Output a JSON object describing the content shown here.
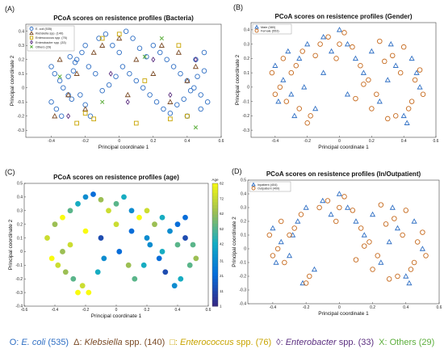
{
  "colors": {
    "ecoli": "#2f6fc4",
    "klebsiella": "#7a4a25",
    "enterococcus": "#c8a400",
    "enterobacter": "#5b2f80",
    "others": "#5cae3c",
    "male": "#2f6fc4",
    "female": "#c66a1e",
    "inpatient": "#2f6fc4",
    "outpatient": "#c66a1e"
  },
  "panels": [
    {
      "label": "(A)",
      "title": "PCoA scores on resistence profiles (Bacteria)",
      "xlabel": "Principal coordinate 1",
      "ylabel": "Principal coordinate 2",
      "xticks": [
        "-0.4",
        "-0.2",
        "0",
        "0.2",
        "0.4",
        "0.6"
      ],
      "yticks": [
        "0.4",
        "0.3",
        "0.2",
        "0.1",
        "0",
        "-0.1",
        "-0.2",
        "-0.3"
      ],
      "legend": [
        "E. coli (535)",
        "Klebsiella spp. (140)",
        "Enterococcus spp. (76)",
        "Enterobacter spp. (33)",
        "Others (29)"
      ]
    },
    {
      "label": "(B)",
      "title": "PCoA scores on resistence profiles (Gender)",
      "xlabel": "Principal coordinate 1",
      "ylabel": "Principal coordinate 2",
      "xticks": [
        "-0.4",
        "-0.2",
        "0",
        "0.2",
        "0.4",
        "0.6"
      ],
      "yticks": [
        "0.4",
        "0.3",
        "0.2",
        "0.1",
        "0",
        "-0.1",
        "-0.2",
        "-0.3"
      ],
      "legend": [
        "Male (380)",
        "Female (553)"
      ]
    },
    {
      "label": "(C)",
      "title": "PCoA scores on resistence profiles (age)",
      "xlabel": "Principal coordinate 1",
      "ylabel": "Principal coordinate 2",
      "xticks": [
        "-0.6",
        "-0.4",
        "-0.2",
        "0",
        "0.2",
        "0.4",
        "0.6"
      ],
      "yticks": [
        "0.5",
        "0.4",
        "0.3",
        "0.2",
        "0.1",
        "0",
        "-0.1",
        "-0.2",
        "-0.3",
        "-0.4"
      ],
      "colorbar": {
        "label": "Age",
        "ticks": [
          "82",
          "72",
          "62",
          "52",
          "42",
          "31",
          "21",
          "11",
          "1"
        ]
      }
    },
    {
      "label": "(D)",
      "title": "PCoA scores on resistence profiles (In/Outpatient)",
      "xlabel": "Principal coordinate 1",
      "ylabel": "Principal coordinate 2",
      "xticks": [
        "-0.4",
        "-0.2",
        "0",
        "0.2",
        "0.4",
        "0.6"
      ],
      "yticks": [
        "0.5",
        "0.4",
        "0.3",
        "0.2",
        "0.1",
        "0",
        "-0.1",
        "-0.2",
        "-0.3",
        "-0.4"
      ],
      "legend": [
        "Inpatient (404)",
        "Outpatient (409)"
      ]
    }
  ],
  "bottom_legend": [
    {
      "symbol": "O:",
      "name": "E. coli",
      "suffix": " (535)",
      "italic": true,
      "color": "#2f6fc4"
    },
    {
      "symbol": "Δ:",
      "name": "Klebsiella",
      "suffix": " spp. (140)",
      "italic": true,
      "color": "#7a4a25"
    },
    {
      "symbol": "□:",
      "name": "Enterococcus",
      "suffix": " spp. (76)",
      "italic": true,
      "color": "#c8a400"
    },
    {
      "symbol": "◊:",
      "name": "Enterobacter",
      "suffix": " spp. (33)",
      "italic": true,
      "color": "#5b2f80"
    },
    {
      "symbol": "X:",
      "name": "Others",
      "suffix": " (29)",
      "italic": false,
      "color": "#5cae3c"
    }
  ],
  "chart_data": [
    {
      "type": "scatter",
      "title": "PCoA scores on resistence profiles (Bacteria)",
      "xlabel": "Principal coordinate 1",
      "ylabel": "Principal coordinate 2",
      "xlim": [
        -0.55,
        0.6
      ],
      "ylim": [
        -0.35,
        0.45
      ],
      "grid": false,
      "legend_position": "top-left",
      "series": [
        {
          "name": "E. coli (535)",
          "marker": "circle",
          "x": [
            -0.4,
            -0.38,
            -0.35,
            -0.33,
            -0.3,
            -0.28,
            -0.25,
            -0.22,
            -0.2,
            -0.4,
            -0.37,
            -0.34,
            -0.3,
            -0.27,
            -0.35,
            -0.32,
            -0.29,
            -0.26,
            -0.23,
            -0.2,
            -0.17,
            -0.12,
            -0.08,
            -0.04,
            0.0,
            0.04,
            0.08,
            0.12,
            0.16,
            0.2,
            0.24,
            0.28,
            0.32,
            0.36,
            0.4,
            0.44,
            0.48,
            0.52,
            0.5,
            0.46,
            0.42,
            0.38,
            0.34,
            0.3,
            0.26,
            0.22,
            0.18,
            0.14,
            0.1,
            0.06,
            0.02,
            -0.02,
            -0.06,
            -0.1,
            -0.14,
            -0.18,
            0.45,
            0.5,
            0.48,
            0.4
          ],
          "y": [
            0.15,
            0.1,
            0.05,
            0.0,
            -0.05,
            -0.08,
            0.2,
            0.25,
            0.3,
            -0.1,
            -0.15,
            -0.2,
            0.08,
            0.12,
            0.28,
            0.32,
            0.22,
            0.18,
            -0.05,
            -0.12,
            -0.2,
            0.35,
            0.38,
            0.3,
            0.25,
            0.4,
            0.35,
            0.28,
            0.22,
            0.3,
            0.25,
            0.2,
            0.15,
            0.1,
            0.05,
            0.0,
            -0.05,
            -0.1,
            0.12,
            0.08,
            -0.02,
            -0.08,
            -0.12,
            -0.18,
            -0.15,
            -0.1,
            -0.05,
            0.0,
            0.05,
            0.1,
            0.15,
            0.08,
            0.02,
            -0.02,
            0.1,
            0.15,
            0.2,
            0.25,
            -0.15,
            -0.2
          ]
        },
        {
          "name": "Klebsiella spp. (140)",
          "marker": "triangle",
          "x": [
            -0.35,
            -0.3,
            -0.25,
            -0.2,
            -0.15,
            -0.1,
            0.0,
            0.1,
            0.2,
            0.3,
            0.4,
            0.45,
            0.35,
            -0.38,
            0.05,
            0.25
          ],
          "y": [
            0.2,
            -0.05,
            0.1,
            -0.15,
            0.25,
            0.3,
            0.35,
            0.2,
            0.1,
            -0.1,
            0.05,
            0.15,
            0.25,
            -0.2,
            -0.05,
            0.3
          ]
        },
        {
          "name": "Enterococcus spp. (76)",
          "marker": "square",
          "x": [
            -0.2,
            -0.15,
            -0.1,
            0.0,
            0.1,
            0.3,
            0.35,
            0.4,
            -0.25,
            0.15
          ],
          "y": [
            -0.18,
            -0.22,
            0.35,
            0.38,
            -0.25,
            -0.22,
            0.3,
            -0.2,
            -0.25,
            0.05
          ]
        },
        {
          "name": "Enterobacter spp. (33)",
          "marker": "diamond",
          "x": [
            -0.05,
            0.05,
            0.2,
            -0.3,
            0.3,
            0.45
          ],
          "y": [
            0.1,
            -0.1,
            0.2,
            -0.2,
            -0.05,
            0.2
          ]
        },
        {
          "name": "Others (29)",
          "marker": "x",
          "x": [
            -0.1,
            0.25,
            0.45,
            0.15,
            -0.35
          ],
          "y": [
            -0.1,
            0.35,
            -0.28,
            0.22,
            0.08
          ]
        }
      ]
    },
    {
      "type": "scatter",
      "title": "PCoA scores on resistence profiles (Gender)",
      "xlabel": "Principal coordinate 1",
      "ylabel": "Principal coordinate 2",
      "xlim": [
        -0.55,
        0.6
      ],
      "ylim": [
        -0.35,
        0.45
      ],
      "grid": false,
      "legend_position": "top-left",
      "series": [
        {
          "name": "Male (380)",
          "marker": "triangle",
          "x": [
            -0.4,
            -0.35,
            -0.3,
            -0.25,
            -0.2,
            -0.15,
            -0.1,
            -0.05,
            0.0,
            0.05,
            0.1,
            0.15,
            0.2,
            0.25,
            0.3,
            0.35,
            0.4,
            0.45,
            0.5,
            -0.38,
            -0.32,
            -0.28,
            0.42,
            0.48,
            -0.22,
            0.32,
            0.05,
            -0.1
          ],
          "y": [
            0.15,
            0.05,
            -0.05,
            0.2,
            0.3,
            -0.15,
            0.35,
            0.25,
            0.4,
            0.3,
            0.2,
            0.1,
            0.25,
            -0.1,
            0.05,
            0.15,
            -0.2,
            0.2,
            0.0,
            -0.1,
            0.25,
            -0.2,
            -0.25,
            0.1,
            0.0,
            0.3,
            -0.05,
            0.1
          ]
        },
        {
          "name": "Female (553)",
          "marker": "circle",
          "x": [
            -0.42,
            -0.37,
            -0.33,
            -0.27,
            -0.23,
            -0.18,
            -0.12,
            -0.07,
            -0.02,
            0.03,
            0.08,
            0.13,
            0.18,
            0.23,
            0.28,
            0.33,
            0.38,
            0.43,
            0.47,
            0.52,
            -0.4,
            -0.35,
            -0.3,
            -0.25,
            -0.2,
            -0.15,
            0.0,
            0.1,
            0.2,
            0.3,
            0.4,
            0.5,
            0.45,
            0.35,
            0.25,
            0.15
          ],
          "y": [
            0.1,
            0.0,
            -0.1,
            0.15,
            0.25,
            -0.2,
            0.3,
            0.35,
            0.2,
            0.38,
            0.28,
            0.15,
            0.05,
            -0.05,
            0.18,
            0.22,
            0.1,
            -0.15,
            0.05,
            -0.05,
            -0.05,
            0.2,
            0.1,
            -0.15,
            -0.25,
            0.22,
            0.3,
            -0.08,
            -0.15,
            -0.22,
            0.28,
            0.12,
            -0.1,
            -0.2,
            0.32,
            0.02
          ]
        }
      ]
    },
    {
      "type": "scatter",
      "title": "PCoA scores on resistence profiles (age)",
      "xlabel": "Principal coordinate 1",
      "ylabel": "Principal coordinate 2",
      "xlim": [
        -0.6,
        0.6
      ],
      "ylim": [
        -0.4,
        0.5
      ],
      "grid": false,
      "colorbar": {
        "label": "Age",
        "range": [
          1,
          82
        ]
      },
      "series": [
        {
          "name": "Age",
          "marker": "filled-circle",
          "x": [
            -0.45,
            -0.4,
            -0.35,
            -0.3,
            -0.25,
            -0.2,
            -0.15,
            -0.1,
            -0.05,
            0.0,
            0.05,
            0.1,
            0.15,
            0.2,
            0.25,
            0.3,
            0.35,
            0.4,
            0.45,
            0.5,
            -0.42,
            -0.38,
            -0.33,
            -0.28,
            -0.22,
            -0.18,
            -0.12,
            -0.08,
            0.02,
            0.08,
            0.12,
            0.18,
            0.22,
            0.28,
            0.32,
            0.38,
            0.42,
            0.48,
            0.52,
            -0.3,
            -0.2,
            -0.1,
            0.1,
            0.2,
            0.3,
            0.4,
            -0.35,
            0.0,
            0.45,
            -0.25
          ],
          "y": [
            0.1,
            0.2,
            0.25,
            0.3,
            0.35,
            0.4,
            0.42,
            0.38,
            0.3,
            0.35,
            0.4,
            0.3,
            0.25,
            0.3,
            0.2,
            0.25,
            0.15,
            0.2,
            0.1,
            0.05,
            -0.05,
            -0.1,
            -0.15,
            -0.2,
            -0.25,
            -0.3,
            -0.15,
            -0.05,
            0.0,
            -0.1,
            -0.2,
            -0.1,
            0.05,
            -0.05,
            -0.15,
            -0.25,
            -0.2,
            -0.1,
            -0.05,
            0.05,
            0.15,
            0.1,
            0.15,
            0.1,
            0.0,
            0.05,
            0.0,
            0.2,
            0.25,
            -0.3
          ],
          "age": [
            72,
            62,
            82,
            52,
            42,
            31,
            21,
            62,
            72,
            52,
            42,
            31,
            82,
            72,
            62,
            42,
            31,
            21,
            11,
            52,
            82,
            72,
            62,
            52,
            72,
            82,
            42,
            31,
            21,
            62,
            52,
            42,
            31,
            21,
            11,
            31,
            42,
            52,
            62,
            72,
            82,
            11,
            21,
            31,
            42,
            52,
            62,
            72,
            21,
            82
          ]
        }
      ]
    },
    {
      "type": "scatter",
      "title": "PCoA scores on resistence profiles (In/Outpatient)",
      "xlabel": "Principal coordinate 1",
      "ylabel": "Principal coordinate 2",
      "xlim": [
        -0.55,
        0.6
      ],
      "ylim": [
        -0.4,
        0.5
      ],
      "grid": false,
      "legend_position": "top-left",
      "series": [
        {
          "name": "Inpatient (404)",
          "marker": "triangle",
          "x": [
            -0.4,
            -0.35,
            -0.3,
            -0.25,
            -0.2,
            -0.15,
            -0.1,
            -0.05,
            0.0,
            0.05,
            0.1,
            0.15,
            0.2,
            0.25,
            0.3,
            0.35,
            0.4,
            0.45,
            0.5,
            -0.38,
            -0.22,
            0.32,
            0.42,
            -0.28
          ],
          "y": [
            0.15,
            0.05,
            -0.05,
            0.2,
            0.3,
            -0.15,
            0.35,
            0.25,
            0.4,
            0.3,
            0.2,
            0.1,
            0.25,
            -0.1,
            0.05,
            0.15,
            -0.2,
            0.2,
            0.0,
            -0.1,
            -0.25,
            0.3,
            -0.25,
            0.1
          ]
        },
        {
          "name": "Outpatient (409)",
          "marker": "circle",
          "x": [
            -0.42,
            -0.37,
            -0.33,
            -0.27,
            -0.23,
            -0.18,
            -0.12,
            -0.07,
            -0.02,
            0.03,
            0.08,
            0.13,
            0.18,
            0.23,
            0.28,
            0.33,
            0.38,
            0.43,
            0.47,
            0.52,
            -0.4,
            -0.35,
            -0.3,
            -0.2,
            0.0,
            0.1,
            0.2,
            0.3,
            0.4,
            0.5,
            0.45,
            0.35,
            0.25,
            0.15
          ],
          "y": [
            0.1,
            0.0,
            -0.1,
            0.15,
            0.25,
            -0.2,
            0.3,
            0.35,
            0.2,
            0.38,
            0.28,
            0.15,
            0.05,
            -0.05,
            0.18,
            0.22,
            0.1,
            -0.15,
            0.05,
            -0.05,
            -0.05,
            0.2,
            0.1,
            -0.25,
            0.3,
            -0.08,
            -0.15,
            -0.22,
            0.28,
            0.12,
            -0.1,
            -0.2,
            0.32,
            0.02
          ]
        }
      ]
    }
  ]
}
